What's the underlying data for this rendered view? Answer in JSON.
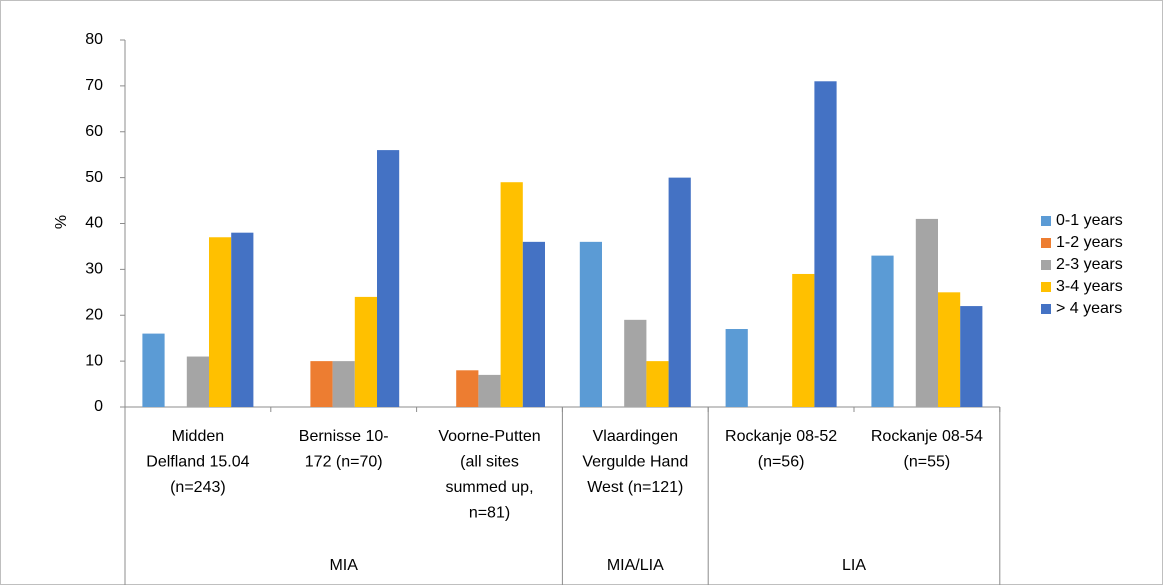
{
  "chart_data": {
    "type": "bar",
    "ylabel": "%",
    "categories": [
      [
        "Midden",
        "Delfland 15.04",
        "(n=243)"
      ],
      [
        "Bernisse 10-",
        "172 (n=70)"
      ],
      [
        "Voorne-Putten",
        "(all sites",
        "summed up,",
        "n=81)"
      ],
      [
        "Vlaardingen",
        "Vergulde Hand",
        "West (n=121)"
      ],
      [
        "Rockanje 08-52",
        "(n=56)"
      ],
      [
        "Rockanje 08-54",
        "(n=55)"
      ]
    ],
    "category_groups": [
      "MIA",
      "MIA",
      "MIA",
      "MIA/LIA",
      "LIA",
      "LIA"
    ],
    "series": [
      {
        "name": "0-1 years",
        "color": "#5b9bd5",
        "values": [
          16,
          0,
          0,
          36,
          17,
          33
        ]
      },
      {
        "name": "1-2 years",
        "color": "#ed7d31",
        "values": [
          0,
          10,
          8,
          0,
          0,
          0
        ]
      },
      {
        "name": "2-3 years",
        "color": "#a5a5a5",
        "values": [
          11,
          10,
          7,
          19,
          0,
          41
        ]
      },
      {
        "name": "3-4 years",
        "color": "#ffc000",
        "values": [
          37,
          24,
          49,
          10,
          29,
          25
        ]
      },
      {
        "name": "> 4 years",
        "color": "#4472c4",
        "values": [
          38,
          56,
          36,
          50,
          71,
          22
        ]
      }
    ],
    "ylim": [
      0,
      80
    ],
    "yticks": [
      0,
      10,
      20,
      30,
      40,
      50,
      60,
      70,
      80
    ],
    "legend": "right"
  }
}
